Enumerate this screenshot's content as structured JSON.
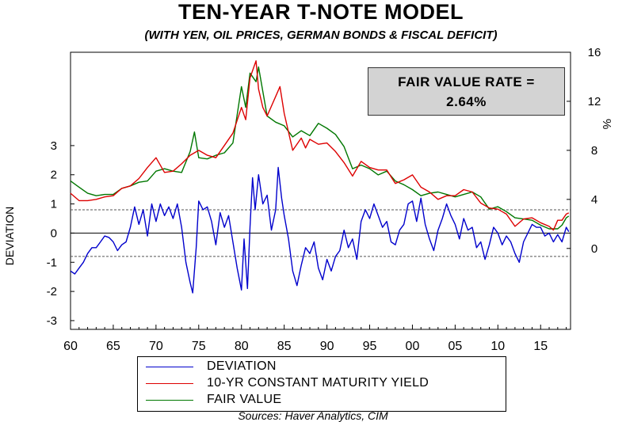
{
  "title": "TEN-YEAR T-NOTE MODEL",
  "subtitle": "(WITH YEN, OIL PRICES, GERMAN BONDS & FISCAL DEFICIT)",
  "fair_value_box": {
    "line1": "FAIR VALUE RATE =",
    "line2": "2.64%"
  },
  "sources": "Sources:  Haver Analytics, CIM",
  "colors": {
    "deviation": "#0000cc",
    "yield": "#dd0000",
    "fair_value": "#007700"
  },
  "chart_data": {
    "type": "line",
    "title": "TEN-YEAR T-NOTE MODEL",
    "subtitle": "(WITH YEN, OIL PRICES, GERMAN BONDS & FISCAL DEFICIT)",
    "xlabel": "",
    "xlim": [
      1960,
      2018.5
    ],
    "x_ticks": [
      "60",
      "65",
      "70",
      "75",
      "80",
      "85",
      "90",
      "95",
      "00",
      "05",
      "10",
      "15"
    ],
    "left_axis": {
      "label": "DEVIATION",
      "ylim": [
        -3.3,
        6.2
      ],
      "ticks": [
        "-3",
        "-2",
        "-1",
        "0",
        "1",
        "2",
        "3"
      ],
      "tick_values": [
        -3,
        -2,
        -1,
        0,
        1,
        2,
        3
      ],
      "reference_lines": [
        0.8,
        -0.8
      ],
      "zero_line": 0
    },
    "right_axis": {
      "label": "%",
      "ylim": [
        -6.6,
        16
      ],
      "ticks": [
        "0",
        "4",
        "8",
        "12",
        "16"
      ],
      "tick_values": [
        0,
        4,
        8,
        12,
        16
      ]
    },
    "series": [
      {
        "name": "DEVIATION",
        "axis": "left",
        "points": [
          [
            1960,
            -1.3
          ],
          [
            1960.5,
            -1.4
          ],
          [
            1961,
            -1.2
          ],
          [
            1961.5,
            -1.0
          ],
          [
            1962,
            -0.7
          ],
          [
            1962.5,
            -0.5
          ],
          [
            1963,
            -0.5
          ],
          [
            1963.5,
            -0.3
          ],
          [
            1964,
            -0.1
          ],
          [
            1964.5,
            -0.15
          ],
          [
            1965,
            -0.3
          ],
          [
            1965.5,
            -0.6
          ],
          [
            1966,
            -0.4
          ],
          [
            1966.5,
            -0.3
          ],
          [
            1967,
            0.2
          ],
          [
            1967.5,
            0.9
          ],
          [
            1968,
            0.3
          ],
          [
            1968.5,
            0.8
          ],
          [
            1969,
            -0.1
          ],
          [
            1969.5,
            1.0
          ],
          [
            1970,
            0.4
          ],
          [
            1970.5,
            1.0
          ],
          [
            1971,
            0.6
          ],
          [
            1971.5,
            0.9
          ],
          [
            1972,
            0.5
          ],
          [
            1972.5,
            1.0
          ],
          [
            1973,
            0.2
          ],
          [
            1973.5,
            -1.0
          ],
          [
            1974,
            -1.7
          ],
          [
            1974.3,
            -2.05
          ],
          [
            1974.7,
            -0.5
          ],
          [
            1975,
            1.1
          ],
          [
            1975.5,
            0.8
          ],
          [
            1976,
            0.9
          ],
          [
            1976.5,
            0.4
          ],
          [
            1977,
            -0.4
          ],
          [
            1977.5,
            0.7
          ],
          [
            1978,
            0.2
          ],
          [
            1978.5,
            0.6
          ],
          [
            1979,
            -0.3
          ],
          [
            1979.5,
            -1.2
          ],
          [
            1980,
            -1.95
          ],
          [
            1980.3,
            -0.2
          ],
          [
            1980.7,
            -1.9
          ],
          [
            1981,
            0.2
          ],
          [
            1981.3,
            1.9
          ],
          [
            1981.6,
            0.8
          ],
          [
            1982,
            2.0
          ],
          [
            1982.5,
            1.0
          ],
          [
            1983,
            1.3
          ],
          [
            1983.5,
            0.1
          ],
          [
            1984,
            0.8
          ],
          [
            1984.3,
            2.25
          ],
          [
            1984.7,
            1.2
          ],
          [
            1985,
            0.6
          ],
          [
            1985.5,
            -0.2
          ],
          [
            1986,
            -1.3
          ],
          [
            1986.5,
            -1.8
          ],
          [
            1987,
            -1.1
          ],
          [
            1987.5,
            -0.5
          ],
          [
            1988,
            -0.7
          ],
          [
            1988.5,
            -0.3
          ],
          [
            1989,
            -1.2
          ],
          [
            1989.5,
            -1.6
          ],
          [
            1990,
            -0.9
          ],
          [
            1990.5,
            -1.3
          ],
          [
            1991,
            -0.8
          ],
          [
            1991.5,
            -0.6
          ],
          [
            1992,
            0.1
          ],
          [
            1992.5,
            -0.5
          ],
          [
            1993,
            -0.2
          ],
          [
            1993.5,
            -0.9
          ],
          [
            1994,
            0.4
          ],
          [
            1994.5,
            0.8
          ],
          [
            1995,
            0.5
          ],
          [
            1995.5,
            1.0
          ],
          [
            1996,
            0.6
          ],
          [
            1996.5,
            0.2
          ],
          [
            1997,
            0.4
          ],
          [
            1997.5,
            -0.3
          ],
          [
            1998,
            -0.4
          ],
          [
            1998.5,
            0.1
          ],
          [
            1999,
            0.3
          ],
          [
            1999.5,
            1.0
          ],
          [
            2000,
            1.1
          ],
          [
            2000.5,
            0.4
          ],
          [
            2001,
            1.2
          ],
          [
            2001.5,
            0.3
          ],
          [
            2002,
            -0.2
          ],
          [
            2002.5,
            -0.6
          ],
          [
            2003,
            0.1
          ],
          [
            2003.5,
            0.5
          ],
          [
            2004,
            1.0
          ],
          [
            2004.5,
            0.6
          ],
          [
            2005,
            0.3
          ],
          [
            2005.5,
            -0.2
          ],
          [
            2006,
            0.5
          ],
          [
            2006.5,
            0.1
          ],
          [
            2007,
            0.2
          ],
          [
            2007.5,
            -0.5
          ],
          [
            2008,
            -0.3
          ],
          [
            2008.5,
            -0.9
          ],
          [
            2009,
            -0.4
          ],
          [
            2009.5,
            0.2
          ],
          [
            2010,
            0.0
          ],
          [
            2010.5,
            -0.4
          ],
          [
            2011,
            -0.1
          ],
          [
            2011.5,
            -0.3
          ],
          [
            2012,
            -0.7
          ],
          [
            2012.5,
            -1.0
          ],
          [
            2013,
            -0.3
          ],
          [
            2013.5,
            0.0
          ],
          [
            2014,
            0.3
          ],
          [
            2014.5,
            0.2
          ],
          [
            2015,
            0.2
          ],
          [
            2015.5,
            -0.1
          ],
          [
            2016,
            0.0
          ],
          [
            2016.5,
            -0.3
          ],
          [
            2017,
            -0.05
          ],
          [
            2017.5,
            -0.3
          ],
          [
            2018,
            0.2
          ],
          [
            2018.3,
            0.05
          ]
        ]
      },
      {
        "name": "10-YR CONSTANT MATURITY YIELD",
        "axis": "right",
        "points": [
          [
            1960,
            4.5
          ],
          [
            1961,
            3.9
          ],
          [
            1962,
            3.9
          ],
          [
            1963,
            4.0
          ],
          [
            1964,
            4.2
          ],
          [
            1965,
            4.3
          ],
          [
            1966,
            4.9
          ],
          [
            1967,
            5.1
          ],
          [
            1968,
            5.7
          ],
          [
            1969,
            6.6
          ],
          [
            1970,
            7.4
          ],
          [
            1971,
            6.2
          ],
          [
            1972,
            6.3
          ],
          [
            1973,
            6.9
          ],
          [
            1974,
            7.6
          ],
          [
            1975,
            8.0
          ],
          [
            1976,
            7.6
          ],
          [
            1977,
            7.4
          ],
          [
            1978,
            8.4
          ],
          [
            1979,
            9.4
          ],
          [
            1980,
            11.5
          ],
          [
            1980.5,
            10.5
          ],
          [
            1981,
            13.9
          ],
          [
            1981.7,
            15.3
          ],
          [
            1982,
            13.0
          ],
          [
            1982.5,
            11.5
          ],
          [
            1983,
            10.8
          ],
          [
            1984,
            12.4
          ],
          [
            1984.5,
            13.2
          ],
          [
            1985,
            11.0
          ],
          [
            1986,
            8.0
          ],
          [
            1987,
            9.0
          ],
          [
            1987.5,
            8.2
          ],
          [
            1988,
            8.9
          ],
          [
            1989,
            8.5
          ],
          [
            1990,
            8.6
          ],
          [
            1991,
            7.9
          ],
          [
            1992,
            7.0
          ],
          [
            1993,
            5.9
          ],
          [
            1994,
            7.1
          ],
          [
            1995,
            6.6
          ],
          [
            1996,
            6.4
          ],
          [
            1997,
            6.4
          ],
          [
            1998,
            5.3
          ],
          [
            1999,
            5.6
          ],
          [
            2000,
            6.0
          ],
          [
            2001,
            5.0
          ],
          [
            2002,
            4.6
          ],
          [
            2003,
            4.0
          ],
          [
            2004,
            4.3
          ],
          [
            2005,
            4.3
          ],
          [
            2006,
            4.8
          ],
          [
            2007,
            4.6
          ],
          [
            2008,
            3.7
          ],
          [
            2009,
            3.3
          ],
          [
            2010,
            3.2
          ],
          [
            2011,
            2.8
          ],
          [
            2012,
            1.8
          ],
          [
            2013,
            2.4
          ],
          [
            2014,
            2.5
          ],
          [
            2015,
            2.1
          ],
          [
            2016,
            1.8
          ],
          [
            2016.5,
            1.5
          ],
          [
            2017,
            2.3
          ],
          [
            2017.5,
            2.3
          ],
          [
            2018,
            2.8
          ],
          [
            2018.3,
            2.9
          ]
        ]
      },
      {
        "name": "FAIR VALUE",
        "axis": "right",
        "points": [
          [
            1960,
            5.5
          ],
          [
            1961,
            5.0
          ],
          [
            1962,
            4.5
          ],
          [
            1963,
            4.3
          ],
          [
            1964,
            4.4
          ],
          [
            1965,
            4.4
          ],
          [
            1966,
            4.9
          ],
          [
            1967,
            5.1
          ],
          [
            1968,
            5.4
          ],
          [
            1969,
            5.5
          ],
          [
            1970,
            6.3
          ],
          [
            1971,
            6.5
          ],
          [
            1972,
            6.3
          ],
          [
            1973,
            6.2
          ],
          [
            1974,
            7.9
          ],
          [
            1974.5,
            9.5
          ],
          [
            1975,
            7.4
          ],
          [
            1976,
            7.3
          ],
          [
            1977,
            7.6
          ],
          [
            1978,
            7.8
          ],
          [
            1979,
            8.6
          ],
          [
            1980,
            13.2
          ],
          [
            1980.5,
            11.5
          ],
          [
            1981,
            14.3
          ],
          [
            1981.7,
            13.6
          ],
          [
            1982,
            14.8
          ],
          [
            1982.5,
            12.8
          ],
          [
            1983,
            10.8
          ],
          [
            1984,
            10.3
          ],
          [
            1985,
            10.0
          ],
          [
            1986,
            9.1
          ],
          [
            1987,
            9.6
          ],
          [
            1988,
            9.2
          ],
          [
            1989,
            10.2
          ],
          [
            1990,
            9.8
          ],
          [
            1991,
            9.3
          ],
          [
            1992,
            8.3
          ],
          [
            1993,
            6.5
          ],
          [
            1994,
            6.8
          ],
          [
            1995,
            6.5
          ],
          [
            1996,
            6.0
          ],
          [
            1997,
            6.3
          ],
          [
            1998,
            5.5
          ],
          [
            1999,
            5.2
          ],
          [
            2000,
            4.8
          ],
          [
            2001,
            4.3
          ],
          [
            2002,
            4.5
          ],
          [
            2003,
            4.6
          ],
          [
            2004,
            4.4
          ],
          [
            2005,
            4.2
          ],
          [
            2006,
            4.4
          ],
          [
            2007,
            4.6
          ],
          [
            2008,
            4.2
          ],
          [
            2009,
            3.2
          ],
          [
            2010,
            3.4
          ],
          [
            2011,
            3.0
          ],
          [
            2012,
            2.5
          ],
          [
            2013,
            2.4
          ],
          [
            2014,
            2.3
          ],
          [
            2015,
            1.9
          ],
          [
            2016,
            1.6
          ],
          [
            2017,
            1.6
          ],
          [
            2017.5,
            1.9
          ],
          [
            2018,
            2.5
          ],
          [
            2018.3,
            2.64
          ]
        ]
      }
    ],
    "legend": {
      "placement": "bottom",
      "entries": [
        "DEVIATION",
        "10-YR CONSTANT MATURITY YIELD",
        "FAIR VALUE"
      ]
    }
  }
}
